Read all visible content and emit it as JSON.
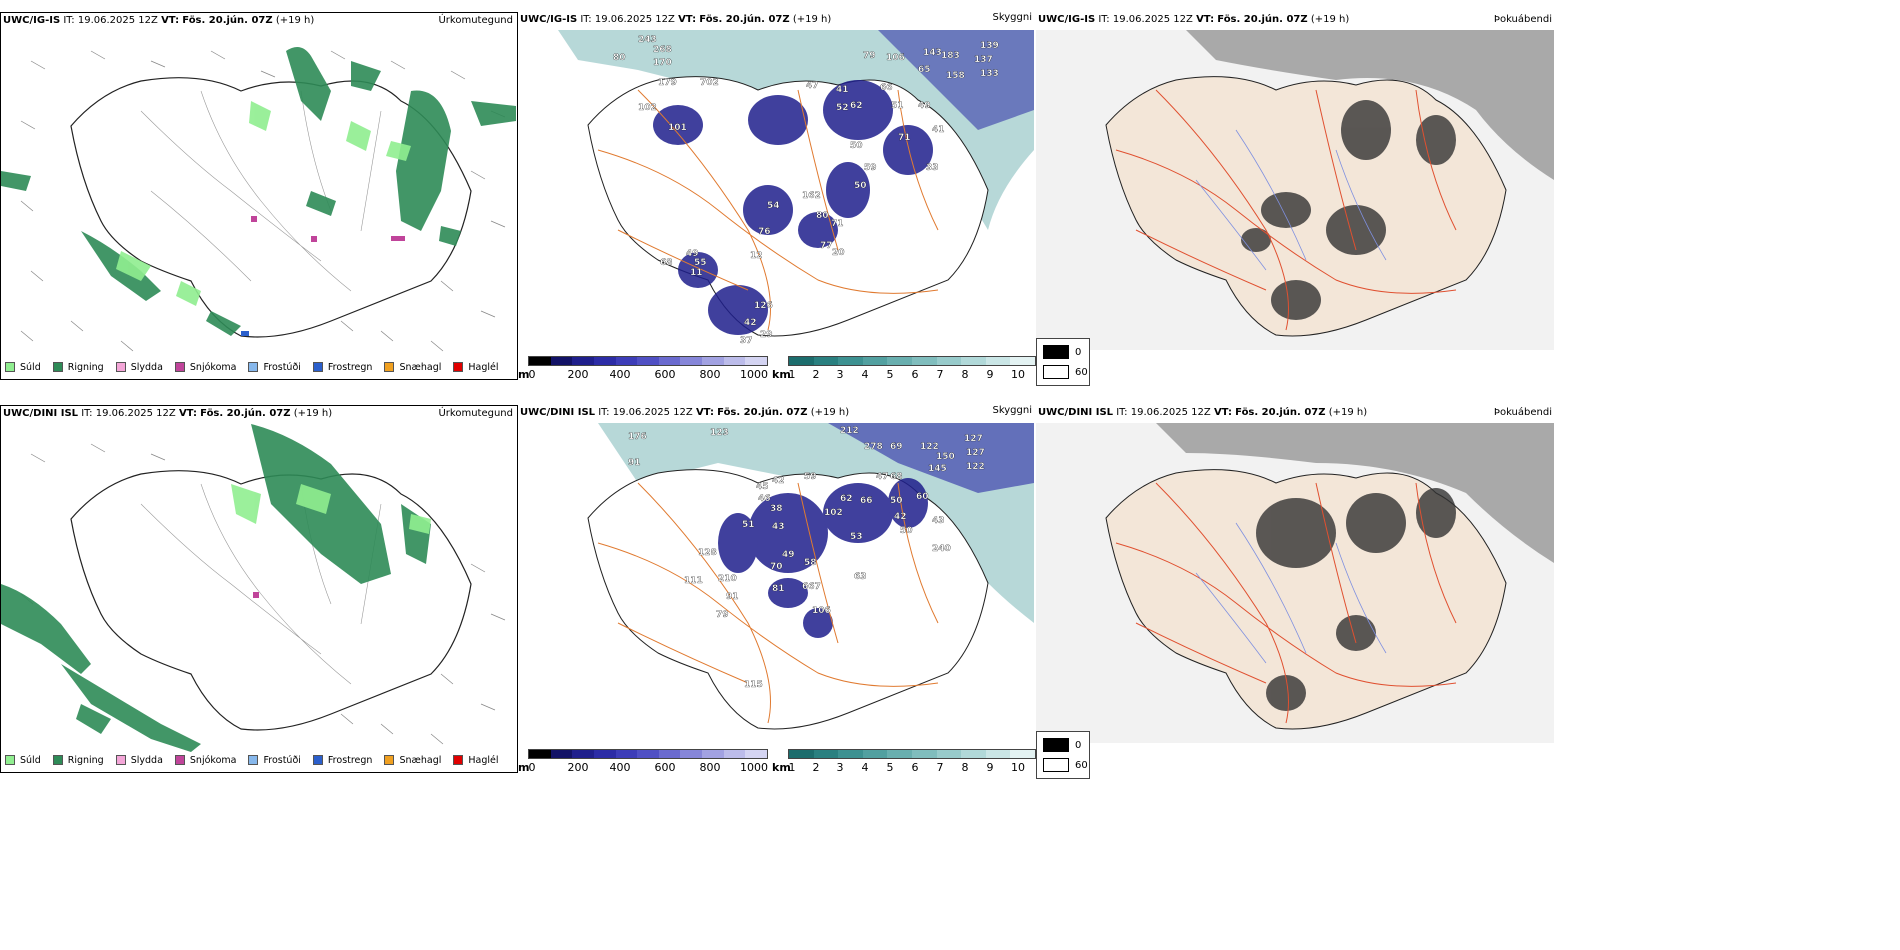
{
  "rows": [
    {
      "model": "UWC/IG-IS",
      "it_label": "IT:",
      "it_value": "19.06.2025 12Z",
      "vt_label": "VT:",
      "vt_value": "Fös. 20.jún. 07Z",
      "lead": "(+19 h)"
    },
    {
      "model": "UWC/DINI ISL",
      "it_label": "IT:",
      "it_value": "19.06.2025 12Z",
      "vt_label": "VT:",
      "vt_value": "Fös. 20.jún. 07Z",
      "lead": "(+19 h)"
    }
  ],
  "panel_titles": {
    "precip_type": "Úrkomutegund",
    "visibility": "Skyggni",
    "cloud": "Þokuábendi"
  },
  "legend": [
    {
      "label": "Súld",
      "color": "#90ee90"
    },
    {
      "label": "Rigning",
      "color": "#2e8b57"
    },
    {
      "label": "Slydda",
      "color": "#f4a6d8"
    },
    {
      "label": "Snjókoma",
      "color": "#c0449a"
    },
    {
      "label": "Frostúði",
      "color": "#87b8ec"
    },
    {
      "label": "Frostregn",
      "color": "#2b5fcc"
    },
    {
      "label": "Snæhagl",
      "color": "#f0a020"
    },
    {
      "label": "Haglél",
      "color": "#e00000"
    }
  ],
  "colorbar_m": {
    "unit": "m",
    "ticks": [
      "0",
      "200",
      "400",
      "600",
      "800",
      "1000"
    ],
    "colors": [
      "#000000",
      "#121266",
      "#1f1f8c",
      "#2c2ca6",
      "#3d3db8",
      "#5050c4",
      "#6a6acf",
      "#8686d9",
      "#a2a2e2",
      "#bcbcea",
      "#d4d4f2"
    ]
  },
  "colorbar_km": {
    "unit": "km",
    "ticks": [
      "1",
      "2",
      "3",
      "4",
      "5",
      "6",
      "7",
      "8",
      "9",
      "10"
    ],
    "colors": [
      "#1c6d6d",
      "#2a8080",
      "#3d9191",
      "#52a0a0",
      "#69afaf",
      "#80bdbd",
      "#98cbcb",
      "#b1d9d9",
      "#cae6e6",
      "#e3f2f2"
    ]
  },
  "cloud_legend": {
    "high": "0",
    "low": "60"
  },
  "visibility_labels": {
    "top": [
      "243",
      "268",
      "170",
      "80",
      "179",
      "702",
      "102",
      "101",
      "47",
      "41",
      "52",
      "62",
      "66",
      "106",
      "79",
      "143",
      "183",
      "139",
      "137",
      "133",
      "158",
      "65",
      "51",
      "49",
      "71",
      "41",
      "50",
      "59",
      "50",
      "33",
      "54",
      "80",
      "71",
      "77",
      "20",
      "162",
      "76",
      "12",
      "55",
      "68",
      "11",
      "126",
      "42",
      "29",
      "37",
      "49"
    ],
    "bottom": [
      "176",
      "123",
      "212",
      "278",
      "69",
      "122",
      "127",
      "150",
      "145",
      "127",
      "122",
      "91",
      "45",
      "42",
      "46",
      "38",
      "59",
      "43",
      "62",
      "47",
      "68",
      "66",
      "50",
      "60",
      "42",
      "50",
      "43",
      "102",
      "53",
      "51",
      "49",
      "70",
      "58",
      "128",
      "210",
      "111",
      "91",
      "79",
      "81",
      "667",
      "106",
      "63",
      "115",
      "240"
    ]
  }
}
